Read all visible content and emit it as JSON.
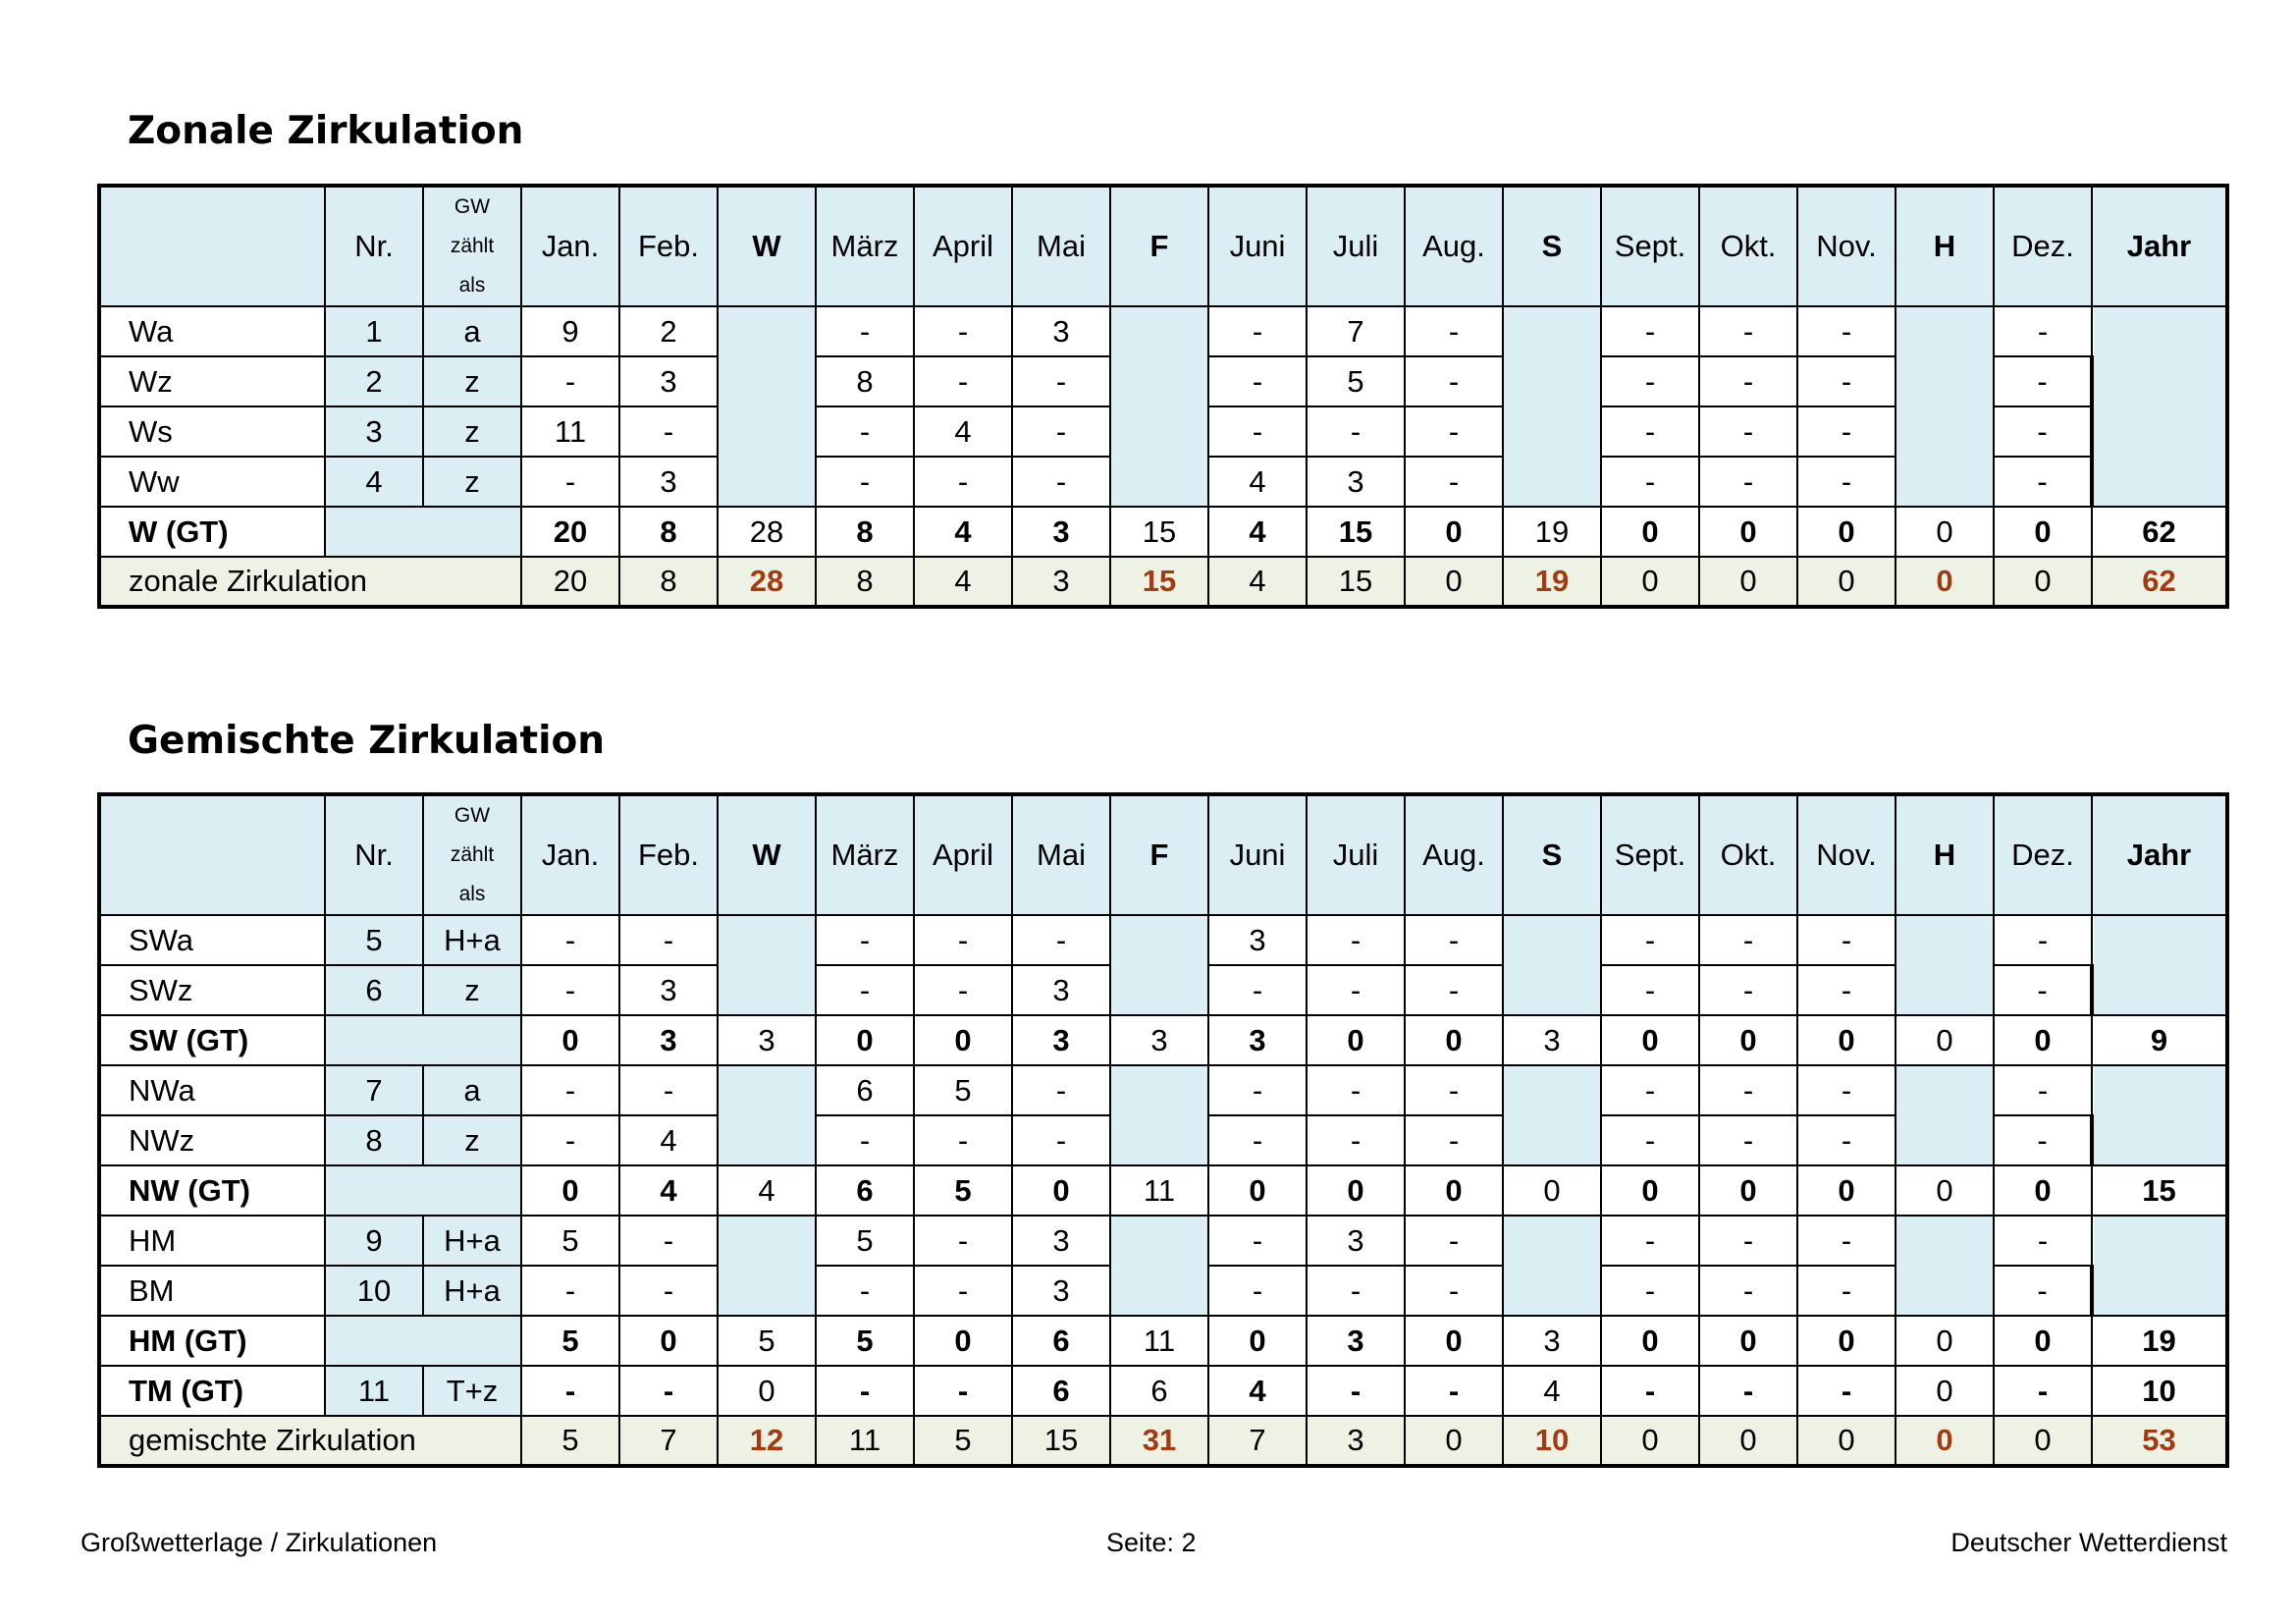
{
  "sections": {
    "zonal": {
      "title": "Zonale Zirkulation",
      "columns": [
        "",
        "Nr.",
        "GW\nzählt\nals",
        "Jan.",
        "Feb.",
        "W",
        "März",
        "April",
        "Mai",
        "F",
        "Juni",
        "Juli",
        "Aug.",
        "S",
        "Sept.",
        "Okt.",
        "Nov.",
        "H",
        "Dez.",
        "Jahr"
      ],
      "rows": [
        {
          "type": "data",
          "name": "Wa",
          "nr": "1",
          "gw": "a",
          "jan": "9",
          "feb": "2",
          "maerz": "-",
          "april": "-",
          "mai": "3",
          "juni": "-",
          "juli": "7",
          "aug": "-",
          "sept": "-",
          "okt": "-",
          "nov": "-",
          "dez": "-"
        },
        {
          "type": "data",
          "name": "Wz",
          "nr": "2",
          "gw": "z",
          "jan": "-",
          "feb": "3",
          "maerz": "8",
          "april": "-",
          "mai": "-",
          "juni": "-",
          "juli": "5",
          "aug": "-",
          "sept": "-",
          "okt": "-",
          "nov": "-",
          "dez": "-"
        },
        {
          "type": "data",
          "name": "Ws",
          "nr": "3",
          "gw": "z",
          "jan": "11",
          "feb": "-",
          "maerz": "-",
          "april": "4",
          "mai": "-",
          "juni": "-",
          "juli": "-",
          "aug": "-",
          "sept": "-",
          "okt": "-",
          "nov": "-",
          "dez": "-"
        },
        {
          "type": "data",
          "name": "Ww",
          "nr": "4",
          "gw": "z",
          "jan": "-",
          "feb": "3",
          "maerz": "-",
          "april": "-",
          "mai": "-",
          "juni": "4",
          "juli": "3",
          "aug": "-",
          "sept": "-",
          "okt": "-",
          "nov": "-",
          "dez": "-"
        },
        {
          "type": "gt",
          "name": "W (GT)",
          "nr": "",
          "gw": "",
          "jan": "20",
          "feb": "8",
          "w": "28",
          "maerz": "8",
          "april": "4",
          "mai": "3",
          "f": "15",
          "juni": "4",
          "juli": "15",
          "aug": "0",
          "s": "19",
          "sept": "0",
          "okt": "0",
          "nov": "0",
          "h": "0",
          "dez": "0",
          "jahr": "62"
        },
        {
          "type": "total",
          "name": "zonale Zirkulation",
          "jan": "20",
          "feb": "8",
          "w": "28",
          "maerz": "8",
          "april": "4",
          "mai": "3",
          "f": "15",
          "juni": "4",
          "juli": "15",
          "aug": "0",
          "s": "19",
          "sept": "0",
          "okt": "0",
          "nov": "0",
          "h": "0",
          "dez": "0",
          "jahr": "62"
        }
      ]
    },
    "mixed": {
      "title": "Gemischte Zirkulation",
      "columns": [
        "",
        "Nr.",
        "GW\nzählt\nals",
        "Jan.",
        "Feb.",
        "W",
        "März",
        "April",
        "Mai",
        "F",
        "Juni",
        "Juli",
        "Aug.",
        "S",
        "Sept.",
        "Okt.",
        "Nov.",
        "H",
        "Dez.",
        "Jahr"
      ],
      "rows": [
        {
          "type": "data",
          "name": "SWa",
          "nr": "5",
          "gw": "H+a",
          "jan": "-",
          "feb": "-",
          "maerz": "-",
          "april": "-",
          "mai": "-",
          "juni": "3",
          "juli": "-",
          "aug": "-",
          "sept": "-",
          "okt": "-",
          "nov": "-",
          "dez": "-",
          "group": "sw"
        },
        {
          "type": "data",
          "name": "SWz",
          "nr": "6",
          "gw": "z",
          "jan": "-",
          "feb": "3",
          "maerz": "-",
          "april": "-",
          "mai": "3",
          "juni": "-",
          "juli": "-",
          "aug": "-",
          "sept": "-",
          "okt": "-",
          "nov": "-",
          "dez": "-",
          "group": "sw"
        },
        {
          "type": "gt",
          "name": "SW (GT)",
          "nr": "",
          "gw": "",
          "jan": "0",
          "feb": "3",
          "w": "3",
          "maerz": "0",
          "april": "0",
          "mai": "3",
          "f": "3",
          "juni": "3",
          "juli": "0",
          "aug": "0",
          "s": "3",
          "sept": "0",
          "okt": "0",
          "nov": "0",
          "h": "0",
          "dez": "0",
          "jahr": "9"
        },
        {
          "type": "data",
          "name": "NWa",
          "nr": "7",
          "gw": "a",
          "jan": "-",
          "feb": "-",
          "maerz": "6",
          "april": "5",
          "mai": "-",
          "juni": "-",
          "juli": "-",
          "aug": "-",
          "sept": "-",
          "okt": "-",
          "nov": "-",
          "dez": "-",
          "group": "nw"
        },
        {
          "type": "data",
          "name": "NWz",
          "nr": "8",
          "gw": "z",
          "jan": "-",
          "feb": "4",
          "maerz": "-",
          "april": "-",
          "mai": "-",
          "juni": "-",
          "juli": "-",
          "aug": "-",
          "sept": "-",
          "okt": "-",
          "nov": "-",
          "dez": "-",
          "group": "nw"
        },
        {
          "type": "gt",
          "name": "NW (GT)",
          "nr": "",
          "gw": "",
          "jan": "0",
          "feb": "4",
          "w": "4",
          "maerz": "6",
          "april": "5",
          "mai": "0",
          "f": "11",
          "juni": "0",
          "juli": "0",
          "aug": "0",
          "s": "0",
          "sept": "0",
          "okt": "0",
          "nov": "0",
          "h": "0",
          "dez": "0",
          "jahr": "15"
        },
        {
          "type": "data",
          "name": "HM",
          "nr": "9",
          "gw": "H+a",
          "jan": "5",
          "feb": "-",
          "maerz": "5",
          "april": "-",
          "mai": "3",
          "juni": "-",
          "juli": "3",
          "aug": "-",
          "sept": "-",
          "okt": "-",
          "nov": "-",
          "dez": "-",
          "group": "hm"
        },
        {
          "type": "data",
          "name": "BM",
          "nr": "10",
          "gw": "H+a",
          "jan": "-",
          "feb": "-",
          "maerz": "-",
          "april": "-",
          "mai": "3",
          "juni": "-",
          "juli": "-",
          "aug": "-",
          "sept": "-",
          "okt": "-",
          "nov": "-",
          "dez": "-",
          "group": "hm"
        },
        {
          "type": "gt",
          "name": "HM (GT)",
          "nr": "",
          "gw": "",
          "jan": "5",
          "feb": "0",
          "w": "5",
          "maerz": "5",
          "april": "0",
          "mai": "6",
          "f": "11",
          "juni": "0",
          "juli": "3",
          "aug": "0",
          "s": "3",
          "sept": "0",
          "okt": "0",
          "nov": "0",
          "h": "0",
          "dez": "0",
          "jahr": "19"
        },
        {
          "type": "gtdata",
          "name": "TM (GT)",
          "nr": "11",
          "gw": "T+z",
          "jan": "-",
          "feb": "-",
          "w": "0",
          "maerz": "-",
          "april": "-",
          "mai": "6",
          "f": "6",
          "juni": "4",
          "juli": "-",
          "aug": "-",
          "s": "4",
          "sept": "-",
          "okt": "-",
          "nov": "-",
          "h": "0",
          "dez": "-",
          "jahr": "10"
        },
        {
          "type": "total",
          "name": "gemischte Zirkulation",
          "jan": "5",
          "feb": "7",
          "w": "12",
          "maerz": "11",
          "april": "5",
          "mai": "15",
          "f": "31",
          "juni": "7",
          "juli": "3",
          "aug": "0",
          "s": "10",
          "sept": "0",
          "okt": "0",
          "nov": "0",
          "h": "0",
          "dez": "0",
          "jahr": "53"
        }
      ]
    }
  },
  "footer": {
    "left": "Großwetterlage / Zirkulationen",
    "center": "Seite: 2",
    "right": "Deutscher Wetterdienst"
  },
  "colors": {
    "header_fill": "#dbeef3",
    "total_fill": "#eef2e4",
    "accent": "#a33a10"
  }
}
